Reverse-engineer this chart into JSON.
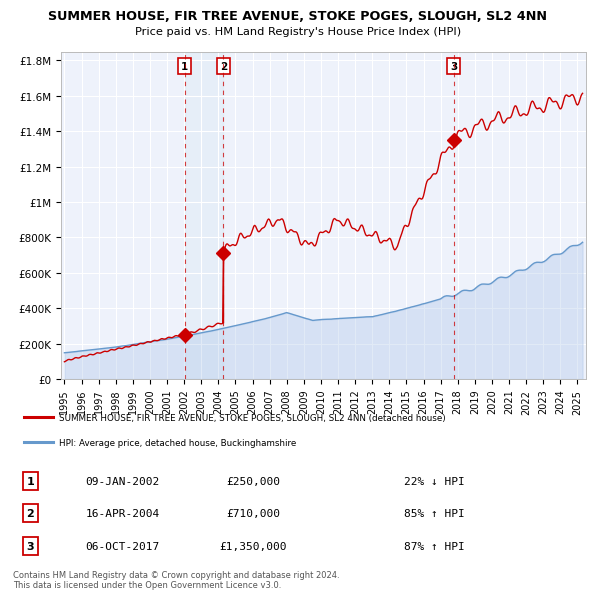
{
  "title": "SUMMER HOUSE, FIR TREE AVENUE, STOKE POGES, SLOUGH, SL2 4NN",
  "subtitle": "Price paid vs. HM Land Registry's House Price Index (HPI)",
  "legend_label_red": "SUMMER HOUSE, FIR TREE AVENUE, STOKE POGES, SLOUGH, SL2 4NN (detached house)",
  "legend_label_blue": "HPI: Average price, detached house, Buckinghamshire",
  "footer": "Contains HM Land Registry data © Crown copyright and database right 2024.\nThis data is licensed under the Open Government Licence v3.0.",
  "transactions": [
    {
      "num": 1,
      "date": "09-JAN-2002",
      "price": "£250,000",
      "change": "22% ↓ HPI",
      "year": 2002.03
    },
    {
      "num": 2,
      "date": "16-APR-2004",
      "price": "£710,000",
      "change": "85% ↑ HPI",
      "year": 2004.29
    },
    {
      "num": 3,
      "date": "06-OCT-2017",
      "price": "£1,350,000",
      "change": "87% ↑ HPI",
      "year": 2017.76
    }
  ],
  "transaction_values": [
    250000,
    710000,
    1350000
  ],
  "vline1_year": 2002.03,
  "vline2_year": 2004.29,
  "vline3_year": 2017.76,
  "red_color": "#cc0000",
  "blue_color": "#6699cc",
  "blue_fill_color": "#aac4e8",
  "background_color": "#eef2fb",
  "grid_color": "#ffffff",
  "ylim": [
    0,
    1850000
  ],
  "xlim_start": 1994.8,
  "xlim_end": 2025.5,
  "yticks": [
    0,
    200000,
    400000,
    600000,
    800000,
    1000000,
    1200000,
    1400000,
    1600000,
    1800000
  ],
  "ylabels": [
    "£0",
    "£200K",
    "£400K",
    "£600K",
    "£800K",
    "£1M",
    "£1.2M",
    "£1.4M",
    "£1.6M",
    "£1.8M"
  ]
}
